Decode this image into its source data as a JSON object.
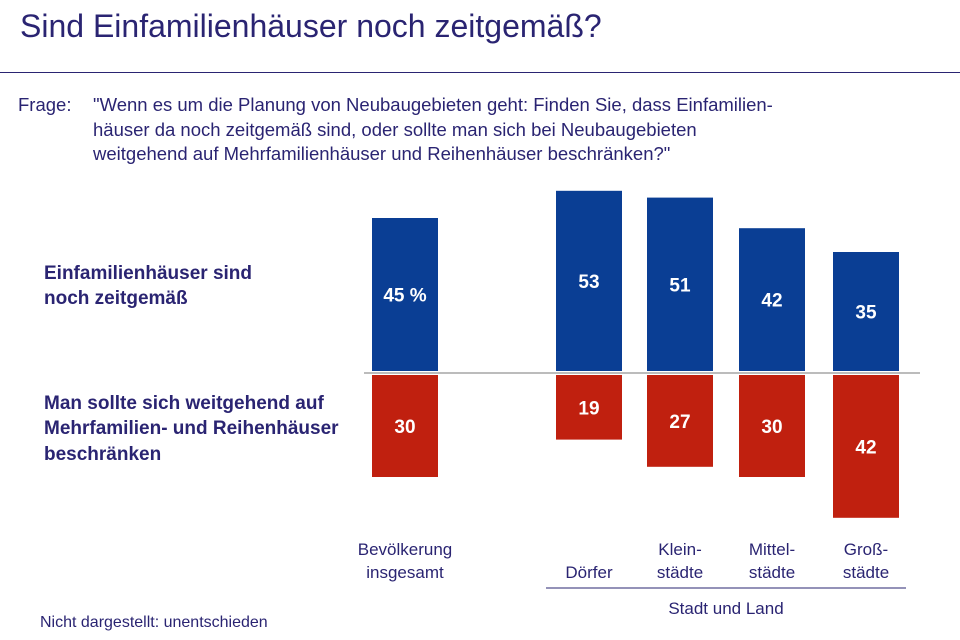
{
  "title": "Sind Einfamilienhäuser noch zeitgemäß?",
  "question": {
    "prefix": "Frage:",
    "lines": [
      "\"Wenn es um die Planung von Neubaugebieten geht: Finden Sie, dass Einfamilien-",
      "häuser da noch zeitgemäß sind, oder sollte man sich bei Neubaugebieten",
      "weitgehend auf Mehrfamilienhäuser und Reihenhäuser beschränken?\""
    ]
  },
  "row_labels": {
    "top": [
      "Einfamilienhäuser sind",
      "noch zeitgemäß"
    ],
    "bottom": [
      "Man sollte sich weitgehend auf",
      "Mehrfamilien- und Reihenhäuser",
      "beschränken"
    ]
  },
  "footnote": "Nicht dargestellt: unentschieden",
  "colors": {
    "blue": "#0a3e94",
    "red": "#c0200f",
    "text": "#2a2472"
  },
  "chart_data": {
    "type": "bar",
    "orientation": "diverging-vertical",
    "categories": [
      [
        "Bevölkerung",
        "insgesamt"
      ],
      [
        "Dörfer"
      ],
      [
        "Klein-",
        "städte"
      ],
      [
        "Mittel-",
        "städte"
      ],
      [
        "Groß-",
        "städte"
      ]
    ],
    "series": [
      {
        "values": [
          45,
          53,
          51,
          42,
          35
        ],
        "labels": [
          "45 %",
          "53",
          "51",
          "42",
          "35"
        ]
      },
      {
        "values": [
          30,
          19,
          27,
          30,
          42
        ],
        "labels": [
          "30",
          "19",
          "27",
          "30",
          "42"
        ]
      }
    ],
    "group_label": "Stadt und Land",
    "ylim": [
      -42,
      53
    ]
  }
}
